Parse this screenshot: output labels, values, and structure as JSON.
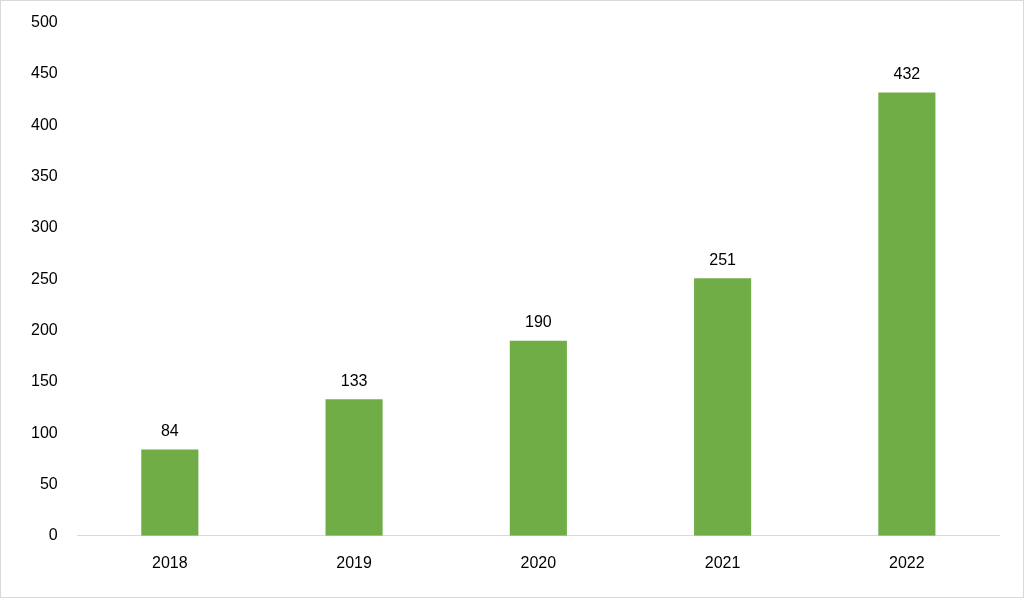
{
  "chart_data": {
    "type": "bar",
    "categories": [
      "2018",
      "2019",
      "2020",
      "2021",
      "2022"
    ],
    "values": [
      84,
      133,
      190,
      251,
      432
    ],
    "color": "#70ad47",
    "ylim": [
      0,
      500
    ],
    "yticks": [
      0,
      50,
      100,
      150,
      200,
      250,
      300,
      350,
      400,
      450,
      500
    ],
    "grid": false,
    "data_labels": true
  }
}
